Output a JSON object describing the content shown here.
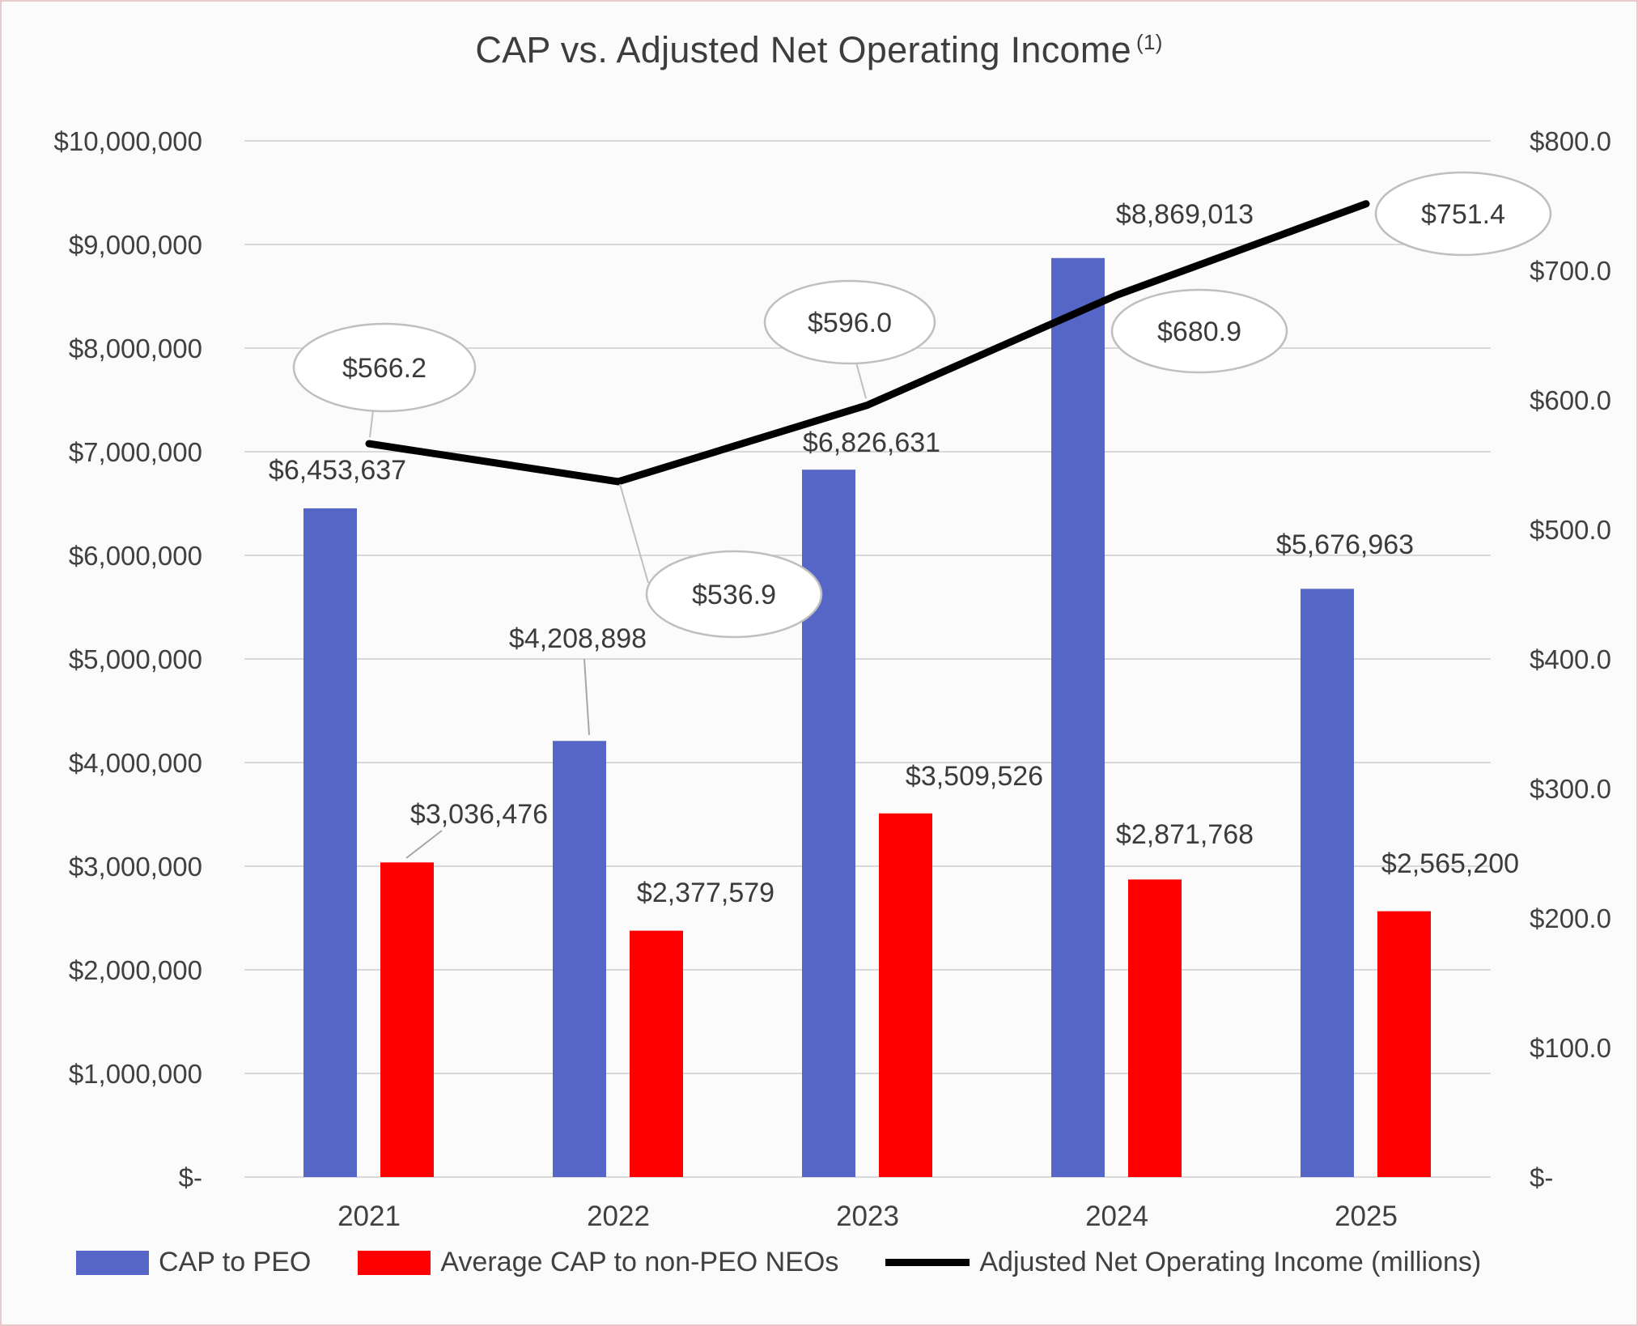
{
  "chart_data": {
    "type": "combo",
    "title": "CAP vs. Adjusted Net Operating Income",
    "title_superscript": "(1)",
    "categories": [
      "2021",
      "2022",
      "2023",
      "2024",
      "2025"
    ],
    "series": [
      {
        "name": "CAP to PEO",
        "type": "bar",
        "axis": "left",
        "color": "#5566C6",
        "values": [
          6453637,
          4208898,
          6826631,
          8869013,
          5676963
        ],
        "labels": [
          "$6,453,637",
          "$4,208,898",
          "$6,826,631",
          "$8,869,013",
          "$5,676,963"
        ]
      },
      {
        "name": "Average CAP to non-PEO NEOs",
        "type": "bar",
        "axis": "left",
        "color": "#FE0000",
        "values": [
          3036476,
          2377579,
          3509526,
          2871768,
          2565200
        ],
        "labels": [
          "$3,036,476",
          "$2,377,579",
          "$3,509,526",
          "$2,871,768",
          "$2,565,200"
        ]
      },
      {
        "name": "Adjusted Net Operating Income (millions)",
        "type": "line",
        "axis": "right",
        "color": "#000000",
        "values": [
          566.2,
          536.9,
          596.0,
          680.9,
          751.4
        ],
        "labels": [
          "$566.2",
          "$536.9",
          "$596.0",
          "$680.9",
          "$751.4"
        ]
      }
    ],
    "left_axis": {
      "min": 0,
      "max": 10000000,
      "step": 1000000,
      "tick_labels": [
        "$-",
        "$1,000,000",
        "$2,000,000",
        "$3,000,000",
        "$4,000,000",
        "$5,000,000",
        "$6,000,000",
        "$7,000,000",
        "$8,000,000",
        "$9,000,000",
        "$10,000,000"
      ]
    },
    "right_axis": {
      "min": 0,
      "max": 800,
      "step": 100,
      "tick_labels": [
        "$-",
        "$100.0",
        "$200.0",
        "$300.0",
        "$400.0",
        "$500.0",
        "$600.0",
        "$700.0",
        "$800.0"
      ]
    },
    "grid": true,
    "legend_position": "bottom",
    "colors": {
      "gridline": "#D9D9D9",
      "axis_text": "#404040",
      "callout_border": "#BFBFBF",
      "leader_line": "#A6A6A6",
      "frame_border": "#E9C9C9"
    }
  }
}
